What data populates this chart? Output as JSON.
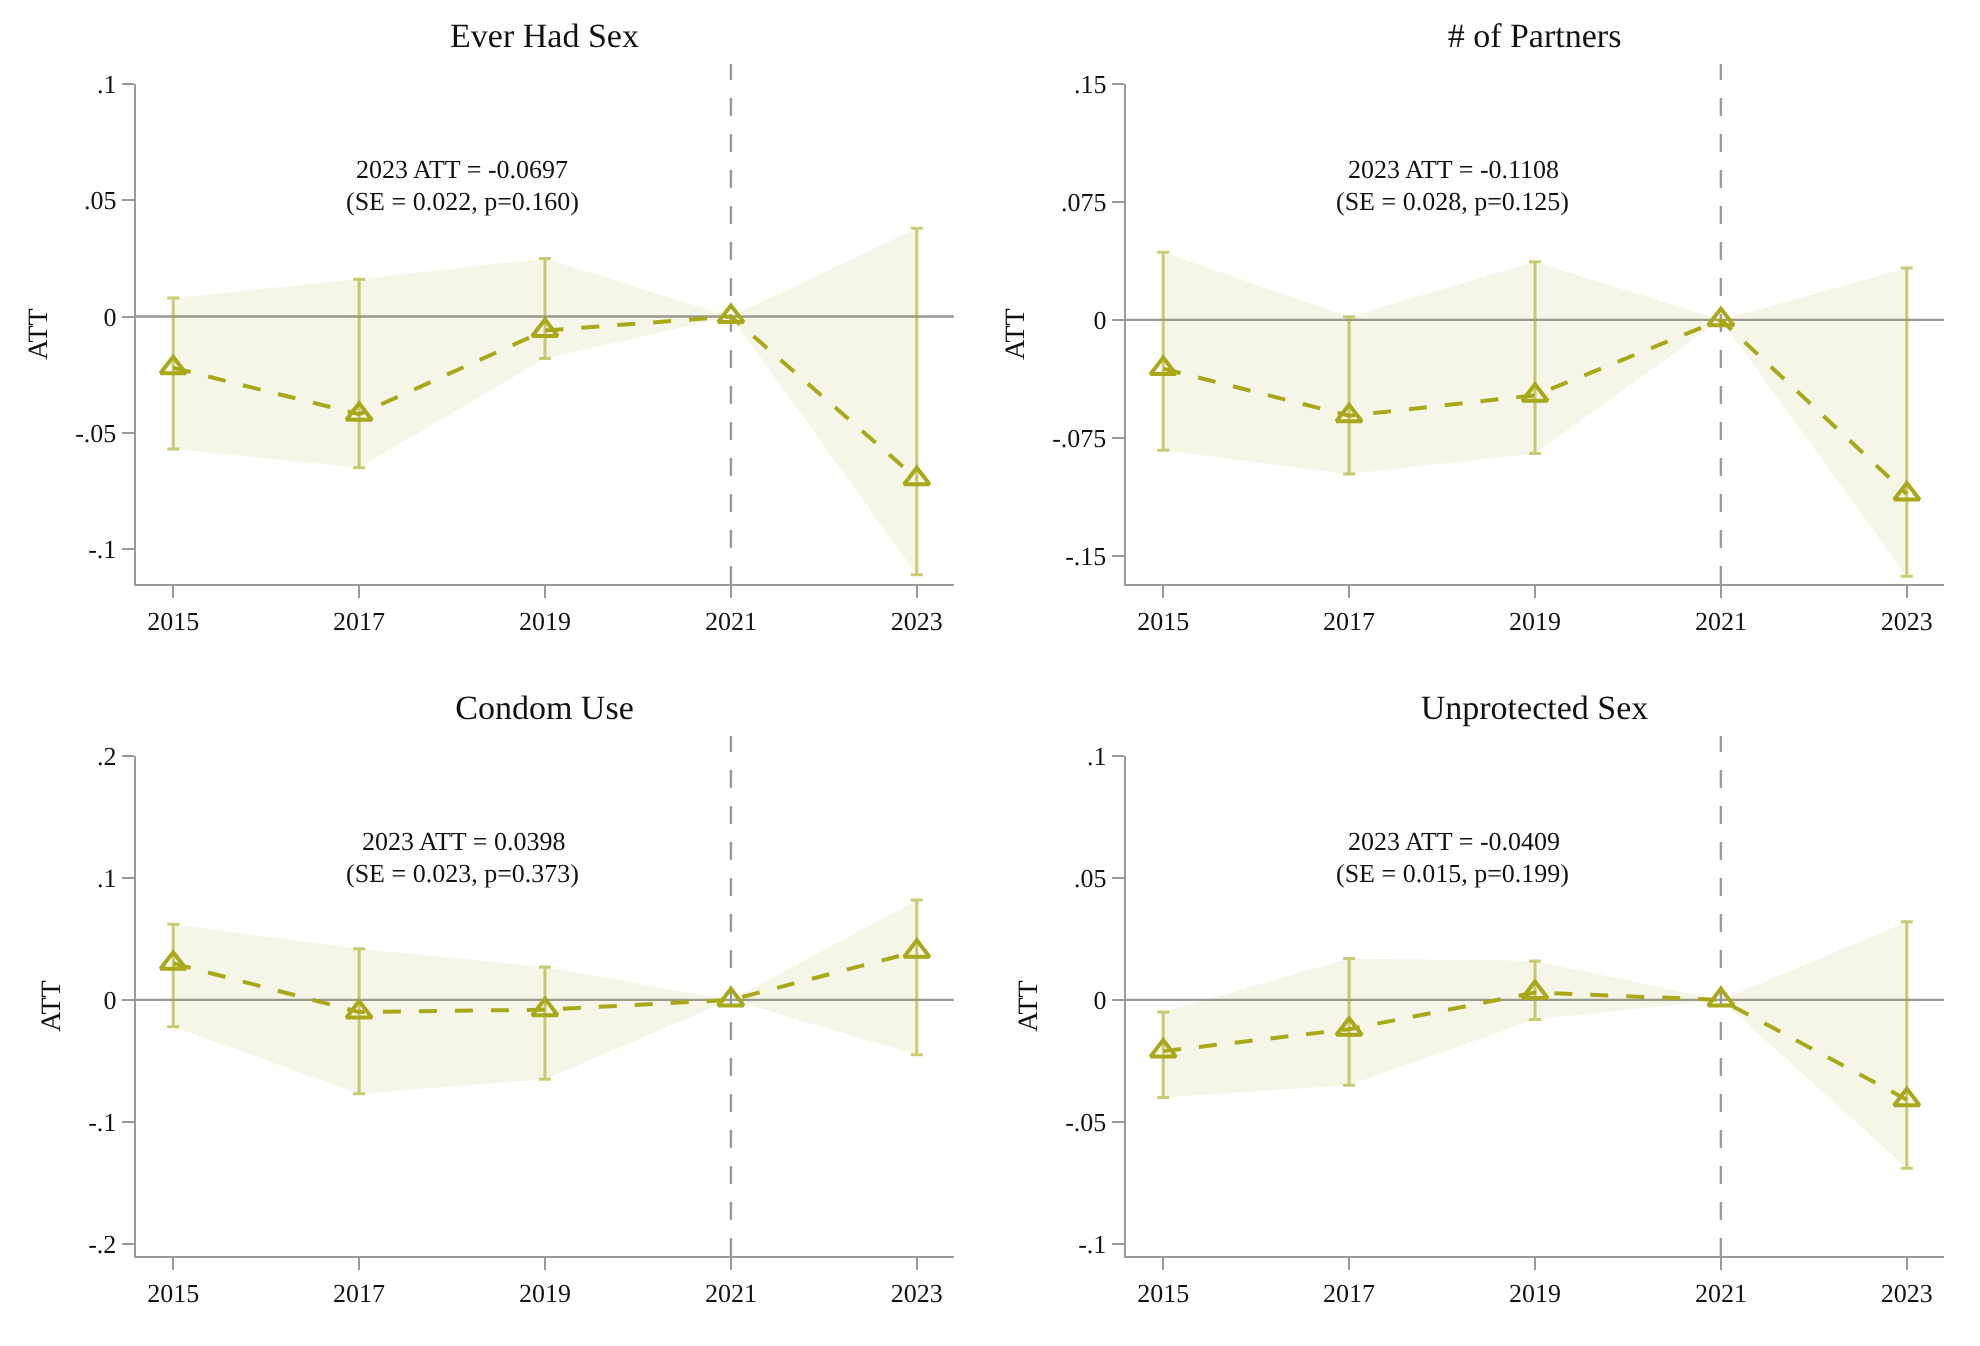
{
  "chart_data": [
    {
      "type": "line",
      "title": "Ever Had Sex",
      "ylabel": "ATT",
      "x": [
        2015,
        2017,
        2019,
        2021,
        2023
      ],
      "xlim": [
        2014.6,
        2023.4
      ],
      "xticks": [
        2015,
        2017,
        2019,
        2021,
        2023
      ],
      "ylim": [
        -0.115,
        0.1
      ],
      "yticks": [
        {
          "value": -0.1,
          "label": "-.1"
        },
        {
          "value": -0.05,
          "label": "-.05"
        },
        {
          "value": 0,
          "label": "0"
        },
        {
          "value": 0.05,
          "label": ".05"
        },
        {
          "value": 0.1,
          "label": ".1"
        }
      ],
      "grid": false,
      "marker": "triangle",
      "line_style": "dashed",
      "annotations": [
        "2023 ATT = -0.0697",
        "(SE = 0.022, p=0.160)"
      ],
      "ref_lines": [
        {
          "axis": "y",
          "value": 0,
          "color": "#999999",
          "line_style": "solid"
        },
        {
          "axis": "x",
          "value": 2021,
          "color": "#999999",
          "line_style": "dashed"
        }
      ],
      "series": [
        {
          "color": "#a8a81a",
          "values": [
            -0.022,
            -0.042,
            -0.006,
            0,
            -0.0697
          ],
          "errors": [
            [
              -0.057,
              0.008
            ],
            [
              -0.065,
              0.016
            ],
            [
              -0.018,
              0.025
            ],
            null,
            [
              -0.111,
              0.038
            ]
          ],
          "lower": [
            -0.057,
            -0.065,
            -0.018,
            0,
            -0.111
          ],
          "upper": [
            0.008,
            0.016,
            0.025,
            0,
            0.038
          ]
        }
      ]
    },
    {
      "type": "line",
      "title": "# of Partners",
      "ylabel": "ATT",
      "x": [
        2015,
        2017,
        2019,
        2021,
        2023
      ],
      "xlim": [
        2014.6,
        2023.4
      ],
      "xticks": [
        2015,
        2017,
        2019,
        2021,
        2023
      ],
      "ylim": [
        -0.168,
        0.15
      ],
      "yticks": [
        {
          "value": -0.15,
          "label": "-.15"
        },
        {
          "value": -0.075,
          "label": "-.075"
        },
        {
          "value": 0,
          "label": "0"
        },
        {
          "value": 0.075,
          "label": ".075"
        },
        {
          "value": 0.15,
          "label": ".15"
        }
      ],
      "grid": false,
      "marker": "triangle",
      "line_style": "dashed",
      "annotations": [
        "2023 ATT = -0.1108",
        "(SE = 0.028, p=0.125)"
      ],
      "ref_lines": [
        {
          "axis": "y",
          "value": 0,
          "color": "#999999",
          "line_style": "solid"
        },
        {
          "axis": "x",
          "value": 2021,
          "color": "#999999",
          "line_style": "dashed"
        }
      ],
      "series": [
        {
          "color": "#a8a81a",
          "values": [
            -0.031,
            -0.061,
            -0.048,
            0,
            -0.1108
          ],
          "errors": [
            [
              -0.083,
              0.043
            ],
            [
              -0.098,
              0.002
            ],
            [
              -0.085,
              0.037
            ],
            null,
            [
              -0.163,
              0.033
            ]
          ],
          "lower": [
            -0.083,
            -0.098,
            -0.085,
            0,
            -0.163
          ],
          "upper": [
            0.043,
            0.002,
            0.037,
            0,
            0.033
          ]
        }
      ]
    },
    {
      "type": "line",
      "title": "Condom Use",
      "ylabel": "ATT",
      "x": [
        2015,
        2017,
        2019,
        2021,
        2023
      ],
      "xlim": [
        2014.6,
        2023.4
      ],
      "xticks": [
        2015,
        2017,
        2019,
        2021,
        2023
      ],
      "ylim": [
        -0.21,
        0.2
      ],
      "yticks": [
        {
          "value": -0.2,
          "label": "-.2"
        },
        {
          "value": -0.1,
          "label": "-.1"
        },
        {
          "value": 0,
          "label": "0"
        },
        {
          "value": 0.1,
          "label": ".1"
        },
        {
          "value": 0.2,
          "label": ".2"
        }
      ],
      "grid": false,
      "marker": "triangle",
      "line_style": "dashed",
      "annotations": [
        "2023 ATT = 0.0398",
        "(SE = 0.023, p=0.373)"
      ],
      "ref_lines": [
        {
          "axis": "y",
          "value": 0,
          "color": "#999999",
          "line_style": "solid"
        },
        {
          "axis": "x",
          "value": 2021,
          "color": "#999999",
          "line_style": "dashed"
        }
      ],
      "series": [
        {
          "color": "#a8a81a",
          "values": [
            0.03,
            -0.01,
            -0.008,
            0,
            0.0398
          ],
          "errors": [
            [
              -0.022,
              0.062
            ],
            [
              -0.077,
              0.042
            ],
            [
              -0.065,
              0.027
            ],
            null,
            [
              -0.045,
              0.082
            ]
          ],
          "lower": [
            -0.022,
            -0.077,
            -0.065,
            0,
            -0.045
          ],
          "upper": [
            0.062,
            0.042,
            0.027,
            0,
            0.082
          ]
        }
      ]
    },
    {
      "type": "line",
      "title": "Unprotected Sex",
      "ylabel": "ATT",
      "x": [
        2015,
        2017,
        2019,
        2021,
        2023
      ],
      "xlim": [
        2014.6,
        2023.4
      ],
      "xticks": [
        2015,
        2017,
        2019,
        2021,
        2023
      ],
      "ylim": [
        -0.105,
        0.1
      ],
      "yticks": [
        {
          "value": -0.1,
          "label": "-.1"
        },
        {
          "value": -0.05,
          "label": "-.05"
        },
        {
          "value": 0,
          "label": "0"
        },
        {
          "value": 0.05,
          "label": ".05"
        },
        {
          "value": 0.1,
          "label": ".1"
        }
      ],
      "grid": false,
      "marker": "triangle",
      "line_style": "dashed",
      "annotations": [
        "2023 ATT = -0.0409",
        "(SE = 0.015, p=0.199)"
      ],
      "ref_lines": [
        {
          "axis": "y",
          "value": 0,
          "color": "#999999",
          "line_style": "solid"
        },
        {
          "axis": "x",
          "value": 2021,
          "color": "#999999",
          "line_style": "dashed"
        }
      ],
      "series": [
        {
          "color": "#a8a81a",
          "values": [
            -0.021,
            -0.012,
            0.003,
            0,
            -0.0409
          ],
          "errors": [
            [
              -0.04,
              -0.005
            ],
            [
              -0.035,
              0.017
            ],
            [
              -0.008,
              0.016
            ],
            null,
            [
              -0.069,
              0.032
            ]
          ],
          "lower": [
            -0.04,
            -0.035,
            -0.008,
            0,
            -0.069
          ],
          "upper": [
            -0.005,
            0.017,
            0.016,
            0,
            0.032
          ]
        }
      ]
    }
  ]
}
